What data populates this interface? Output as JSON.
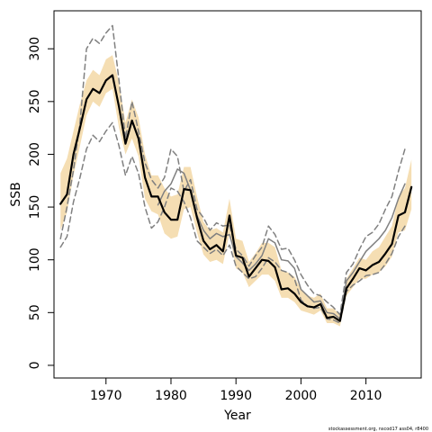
{
  "chart_data": {
    "type": "line",
    "xlabel": "Year",
    "ylabel": "SSB",
    "xlim": [
      1962,
      2018.5
    ],
    "ylim": [
      -12,
      336
    ],
    "x_ticks": [
      1970,
      1980,
      1990,
      2000,
      2010
    ],
    "y_ticks": [
      0,
      50,
      100,
      150,
      200,
      250,
      300
    ],
    "grid": false,
    "legend": "none",
    "footnote": "stockassessment.org, nscod17  ass04, r8400",
    "colors": {
      "band": "#f5deb3",
      "estimate": "#000000",
      "comparison": "#808080"
    },
    "x": [
      1963,
      1964,
      1965,
      1966,
      1967,
      1968,
      1969,
      1970,
      1971,
      1972,
      1973,
      1974,
      1975,
      1976,
      1977,
      1978,
      1979,
      1980,
      1981,
      1982,
      1983,
      1984,
      1985,
      1986,
      1987,
      1988,
      1989,
      1990,
      1991,
      1992,
      1993,
      1994,
      1995,
      1996,
      1997,
      1998,
      1999,
      2000,
      2001,
      2002,
      2003,
      2004,
      2005,
      2006,
      2007,
      2008,
      2009,
      2010,
      2011,
      2012,
      2013,
      2014,
      2015,
      2016,
      2017
    ],
    "series": [
      {
        "role": "estimate",
        "values": [
          153,
          162,
          200,
          225,
          252,
          262,
          258,
          270,
          275,
          245,
          210,
          232,
          215,
          178,
          160,
          160,
          145,
          138,
          138,
          167,
          166,
          140,
          118,
          110,
          114,
          108,
          142,
          104,
          102,
          84,
          92,
          100,
          99,
          93,
          72,
          73,
          68,
          60,
          56,
          55,
          58,
          45,
          46,
          42,
          73,
          82,
          92,
          90,
          95,
          98,
          106,
          115,
          142,
          145,
          169
        ]
      },
      {
        "role": "lower-bound",
        "values": [
          128,
          145,
          180,
          208,
          237,
          250,
          245,
          258,
          262,
          225,
          200,
          215,
          198,
          158,
          146,
          143,
          125,
          120,
          122,
          148,
          150,
          126,
          105,
          98,
          100,
          96,
          125,
          92,
          88,
          74,
          80,
          86,
          86,
          80,
          64,
          64,
          60,
          52,
          50,
          48,
          52,
          40,
          40,
          37,
          66,
          74,
          82,
          82,
          86,
          88,
          94,
          103,
          126,
          128,
          148
        ]
      },
      {
        "role": "upper-bound",
        "values": [
          182,
          196,
          222,
          248,
          270,
          280,
          275,
          290,
          294,
          268,
          230,
          252,
          235,
          200,
          180,
          180,
          168,
          160,
          162,
          188,
          188,
          160,
          136,
          128,
          130,
          126,
          158,
          120,
          118,
          98,
          106,
          116,
          116,
          112,
          90,
          88,
          84,
          72,
          66,
          64,
          68,
          54,
          54,
          48,
          82,
          92,
          102,
          100,
          108,
          112,
          122,
          132,
          160,
          168,
          195
        ]
      },
      {
        "role": "comparison-upper",
        "values": [
          120,
          150,
          185,
          230,
          300,
          310,
          305,
          315,
          322,
          270,
          215,
          250,
          222,
          192,
          176,
          168,
          178,
          205,
          198,
          165,
          176,
          148,
          140,
          128,
          135,
          132,
          133,
          110,
          104,
          94,
          104,
          112,
          132,
          124,
          110,
          111,
          100,
          86,
          76,
          68,
          66,
          60,
          55,
          48,
          88,
          96,
          110,
          122,
          126,
          134,
          148,
          160,
          184,
          205,
          null
        ]
      },
      {
        "role": "comparison-estimate",
        "values": [
          null,
          null,
          null,
          null,
          null,
          null,
          null,
          null,
          null,
          null,
          null,
          null,
          null,
          null,
          null,
          152,
          165,
          172,
          186,
          182,
          166,
          142,
          128,
          120,
          125,
          122,
          124,
          103,
          97,
          90,
          96,
          104,
          120,
          116,
          100,
          99,
          92,
          72,
          66,
          60,
          61,
          50,
          49,
          44,
          80,
          88,
          98,
          108,
          114,
          120,
          128,
          140,
          158,
          172,
          null
        ]
      },
      {
        "role": "comparison-lower",
        "values": [
          112,
          122,
          155,
          178,
          205,
          218,
          212,
          222,
          230,
          208,
          180,
          198,
          182,
          150,
          130,
          136,
          150,
          168,
          165,
          155,
          140,
          118,
          112,
          106,
          110,
          104,
          114,
          94,
          88,
          82,
          84,
          92,
          102,
          98,
          90,
          88,
          82,
          62,
          56,
          54,
          55,
          44,
          43,
          40,
          70,
          76,
          80,
          85,
          86,
          88,
          96,
          106,
          122,
          132,
          null
        ]
      }
    ]
  }
}
